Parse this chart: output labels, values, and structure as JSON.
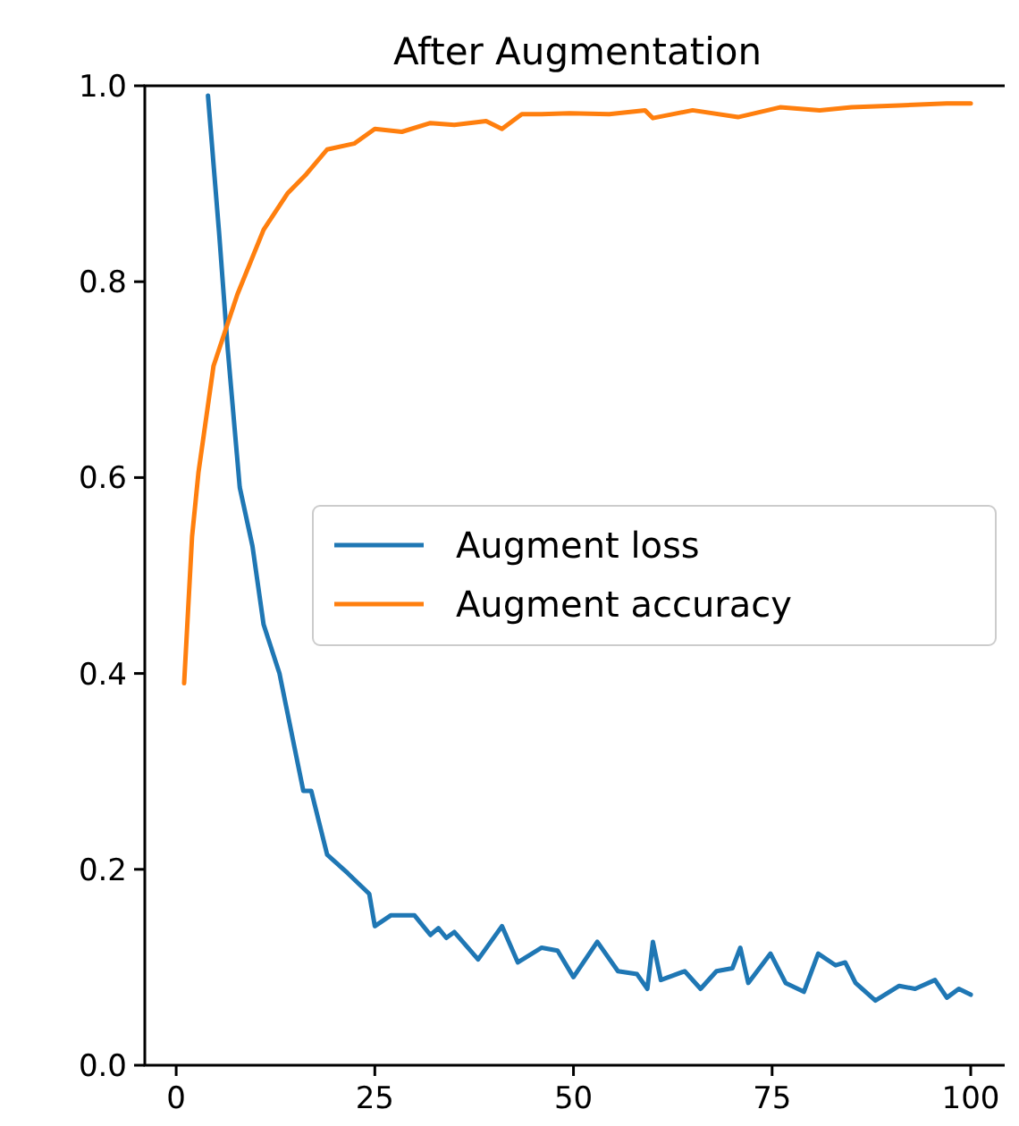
{
  "chart_data": {
    "type": "line",
    "title": "After Augmentation",
    "xlim": [
      -3.95,
      104.95
    ],
    "xticks": [
      0,
      25,
      50,
      75,
      100
    ],
    "ylim": [
      0,
      1
    ],
    "yticks": [
      {
        "value": 0,
        "label": "0.0"
      },
      {
        "value": 0.2,
        "label": "0.2"
      },
      {
        "value": 0.4,
        "label": "0.4"
      },
      {
        "value": 0.6,
        "label": "0.6"
      },
      {
        "value": 0.8,
        "label": "0.8"
      },
      {
        "value": 1,
        "label": "1.0"
      }
    ],
    "grid": false,
    "legend": "right",
    "series": [
      {
        "name": "Augment loss",
        "color": "#1f77b4",
        "x": [
          4,
          5.4,
          6.5,
          8,
          9.6,
          11,
          13,
          16,
          17,
          19,
          21.6,
          24.3,
          25,
          27,
          30,
          32,
          33,
          34,
          35,
          38,
          41,
          43,
          46,
          48,
          50,
          53,
          55.6,
          58,
          59.3,
          60,
          61,
          64,
          66,
          68,
          70,
          71,
          72,
          74.8,
          76.7,
          79,
          80.8,
          83,
          84.2,
          85.5,
          88,
          91,
          93,
          95.5,
          97,
          98.5,
          100
        ],
        "values": [
          0.99,
          0.85,
          0.73,
          0.59,
          0.53,
          0.45,
          0.4,
          0.28,
          0.28,
          0.215,
          0.196,
          0.175,
          0.142,
          0.153,
          0.153,
          0.133,
          0.14,
          0.13,
          0.136,
          0.108,
          0.142,
          0.105,
          0.12,
          0.117,
          0.09,
          0.126,
          0.096,
          0.093,
          0.078,
          0.126,
          0.087,
          0.096,
          0.078,
          0.096,
          0.099,
          0.12,
          0.084,
          0.114,
          0.084,
          0.075,
          0.114,
          0.102,
          0.105,
          0.084,
          0.066,
          0.081,
          0.078,
          0.087,
          0.069,
          0.078,
          0.072
        ]
      },
      {
        "name": "Augment accuracy",
        "color": "#ff7f0e",
        "x": [
          1,
          2,
          2.8,
          4.7,
          7.7,
          11,
          14,
          16.4,
          19,
          22.4,
          25,
          28.4,
          32,
          35,
          39,
          41,
          43.5,
          46,
          49.5,
          54.5,
          59,
          60,
          65,
          70.7,
          76,
          81,
          85,
          91,
          97,
          100
        ],
        "values": [
          0.39,
          0.54,
          0.605,
          0.714,
          0.787,
          0.853,
          0.89,
          0.91,
          0.935,
          0.941,
          0.956,
          0.953,
          0.962,
          0.96,
          0.964,
          0.956,
          0.971,
          0.971,
          0.972,
          0.971,
          0.975,
          0.967,
          0.975,
          0.968,
          0.978,
          0.975,
          0.978,
          0.98,
          0.982,
          0.982
        ]
      }
    ]
  }
}
